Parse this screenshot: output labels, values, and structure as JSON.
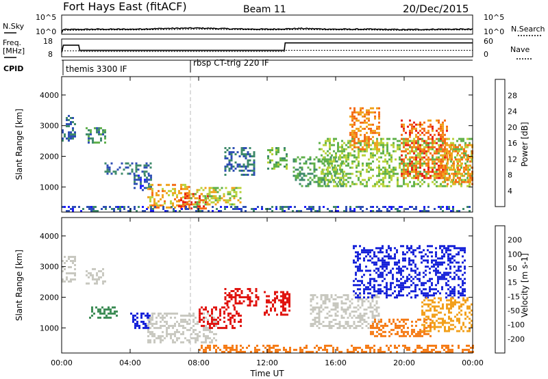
{
  "header": {
    "station": "Fort Hays East (fitACF)",
    "beam": "Beam 11",
    "date": "20/Dec/2015"
  },
  "noise_panel": {
    "left_label": "N.Sky",
    "right_label": "N.Search",
    "left_ticks": [
      "10^5",
      "10^0"
    ],
    "right_ticks": [
      "10^5",
      "10^0"
    ]
  },
  "freq_panel": {
    "left_label_1": "Freq.",
    "left_label_2": "[MHz]",
    "right_label": "Nave",
    "left_ticks": [
      "18",
      "8"
    ],
    "right_ticks": [
      "60",
      "0"
    ]
  },
  "cpid_panel": {
    "label": "CPID",
    "modes": [
      {
        "name": "themis 3300 IF",
        "start_hour": 0.0
      },
      {
        "name": "rbsp CT-trig 220 IF",
        "start_hour": 7.5
      }
    ]
  },
  "x_axis": {
    "label": "Time UT",
    "ticks": [
      "00:00",
      "04:00",
      "08:00",
      "12:00",
      "16:00",
      "20:00",
      "00:00"
    ],
    "range_hours": [
      0,
      24
    ]
  },
  "y_axis": {
    "label": "Slant Range [km]",
    "ticks": [
      "1000",
      "2000",
      "3000",
      "4000"
    ],
    "range_km": [
      180,
      4600
    ]
  },
  "power_panel": {
    "colorbar_label": "Power [dB]",
    "colorbar_ticks": [
      "4",
      "8",
      "12",
      "16",
      "20",
      "24",
      "28"
    ],
    "colors": [
      "#1a1aff",
      "#2f4fb5",
      "#3e8a6a",
      "#5fb04a",
      "#b8d23a",
      "#f0a21a",
      "#f56a14",
      "#e62014"
    ]
  },
  "velocity_panel": {
    "colorbar_label": "Velocity [m s-1]",
    "colorbar_ticks": [
      "200",
      "100",
      "50",
      "15",
      "-15",
      "-50",
      "-100",
      "-200"
    ],
    "colors": [
      "#1420d8",
      "#2b6fb0",
      "#3c8c55",
      "#7ec83f",
      "#c8c8c0",
      "#f2a01c",
      "#f57a14",
      "#f23c12",
      "#e0140f"
    ]
  },
  "chart_data": [
    {
      "type": "line",
      "title": "N.Sky / N.Search",
      "x": [
        0,
        2,
        4,
        6,
        8,
        10,
        12,
        14,
        16,
        18,
        20,
        22,
        24
      ],
      "series": [
        {
          "name": "N.Sky",
          "values": [
            1.2,
            1.3,
            1.3,
            1.5,
            1.6,
            1.4,
            1.3,
            1.5,
            1.3,
            1.3,
            1.2,
            1.3,
            1.3
          ]
        },
        {
          "name": "N.Search",
          "values": [
            1.0,
            1.1,
            1.1,
            1.2,
            1.3,
            1.2,
            1.1,
            1.2,
            1.1,
            1.1,
            1.0,
            1.1,
            1.1
          ]
        }
      ]
    },
    {
      "type": "line",
      "title": "Freq. / Nave",
      "x": [
        0,
        0.1,
        1.0,
        1.05,
        13.0,
        13.05,
        24
      ],
      "series": [
        {
          "name": "Freq.",
          "values": [
            10.5,
            14.5,
            14.5,
            11.6,
            11.6,
            15.8,
            15.8
          ]
        },
        {
          "name": "Nave",
          "values": [
            20,
            20,
            20,
            18,
            18,
            22,
            22
          ]
        }
      ]
    },
    {
      "type": "heatmap",
      "title": "Power [dB]",
      "xlabel": "Time UT",
      "ylabel": "Slant Range [km]",
      "regions": [
        {
          "t0": 0.0,
          "t1": 0.8,
          "r0": 2500,
          "r1": 3350,
          "v": 8
        },
        {
          "t0": 1.4,
          "t1": 2.6,
          "r0": 2450,
          "r1": 2950,
          "v": 10
        },
        {
          "t0": 2.5,
          "t1": 5.2,
          "r0": 1400,
          "r1": 1800,
          "v": 8
        },
        {
          "t0": 4.2,
          "t1": 5.2,
          "r0": 900,
          "r1": 1400,
          "v": 7
        },
        {
          "t0": 5.0,
          "t1": 7.5,
          "r0": 300,
          "r1": 1100,
          "v": 22
        },
        {
          "t0": 6.8,
          "t1": 8.6,
          "r0": 300,
          "r1": 800,
          "v": 28
        },
        {
          "t0": 7.5,
          "t1": 10.5,
          "r0": 400,
          "r1": 1000,
          "v": 18
        },
        {
          "t0": 9.5,
          "t1": 11.2,
          "r0": 1400,
          "r1": 2300,
          "v": 8
        },
        {
          "t0": 12.0,
          "t1": 13.2,
          "r0": 1600,
          "r1": 2300,
          "v": 14
        },
        {
          "t0": 13.5,
          "t1": 16.5,
          "r0": 1000,
          "r1": 2000,
          "v": 12
        },
        {
          "t0": 15.0,
          "t1": 24.0,
          "r0": 1000,
          "r1": 2600,
          "v": 16
        },
        {
          "t0": 16.8,
          "t1": 18.6,
          "r0": 2200,
          "r1": 3600,
          "v": 24
        },
        {
          "t0": 19.8,
          "t1": 22.5,
          "r0": 1300,
          "r1": 3200,
          "v": 26
        },
        {
          "t0": 22.0,
          "t1": 24.0,
          "r0": 1100,
          "r1": 2400,
          "v": 24
        },
        {
          "t0": 0.0,
          "t1": 24.0,
          "r0": 180,
          "r1": 380,
          "v": 6
        }
      ]
    },
    {
      "type": "heatmap",
      "title": "Velocity [m s-1]",
      "xlabel": "Time UT",
      "ylabel": "Slant Range [km]",
      "regions": [
        {
          "t0": 0.0,
          "t1": 0.8,
          "r0": 2500,
          "r1": 3350,
          "v": 0
        },
        {
          "t0": 1.4,
          "t1": 2.6,
          "r0": 2450,
          "r1": 2950,
          "v": 0
        },
        {
          "t0": 1.6,
          "t1": 3.2,
          "r0": 1300,
          "r1": 1700,
          "v": 60
        },
        {
          "t0": 4.0,
          "t1": 5.2,
          "r0": 1000,
          "r1": 1500,
          "v": 220
        },
        {
          "t0": 5.0,
          "t1": 9.0,
          "r0": 500,
          "r1": 1500,
          "v": 0
        },
        {
          "t0": 8.0,
          "t1": 10.5,
          "r0": 1000,
          "r1": 1700,
          "v": -210
        },
        {
          "t0": 9.5,
          "t1": 11.5,
          "r0": 1700,
          "r1": 2300,
          "v": -210
        },
        {
          "t0": 11.8,
          "t1": 13.3,
          "r0": 1400,
          "r1": 2200,
          "v": -210
        },
        {
          "t0": 8.0,
          "t1": 24.0,
          "r0": 200,
          "r1": 450,
          "v": -60
        },
        {
          "t0": 14.5,
          "t1": 18.5,
          "r0": 1000,
          "r1": 2100,
          "v": 0
        },
        {
          "t0": 17.0,
          "t1": 23.5,
          "r0": 2000,
          "r1": 3700,
          "v": 220
        },
        {
          "t0": 18.0,
          "t1": 21.5,
          "r0": 700,
          "r1": 1300,
          "v": -80
        },
        {
          "t0": 21.0,
          "t1": 24.0,
          "r0": 900,
          "r1": 2000,
          "v": -40
        }
      ]
    }
  ]
}
